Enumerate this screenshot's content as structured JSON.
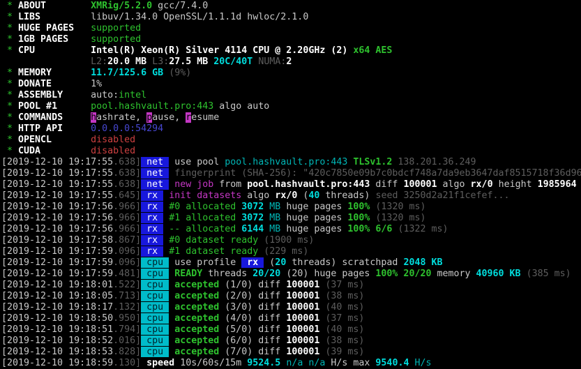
{
  "app": "xmrig-terminal",
  "palette": {
    "background": "#000000",
    "text": "#c9c9c9",
    "text_bright": "#ffffff",
    "green": "#2ec22e",
    "cyan": "#00b5b5",
    "cyan_bright": "#00dede",
    "gray_dim": "#5e5e5e",
    "magenta": "#c437c4",
    "red": "#cd4040",
    "blue": "#4747d1",
    "tag_net_bg": "#1818dc",
    "tag_cpu_bg": "#00bcca"
  },
  "terminal": {
    "info_lines": [
      {
        "star": true,
        "label": "ABOUT",
        "segments": [
          [
            "G",
            "XMRig/5.2.0"
          ],
          [
            "w",
            " gcc/7.4.0"
          ]
        ]
      },
      {
        "star": true,
        "label": "LIBS",
        "segments": [
          [
            "w",
            "libuv/1.34.0 OpenSSL/1.1.1d hwloc/2.1.0"
          ]
        ]
      },
      {
        "star": true,
        "label": "HUGE PAGES",
        "segments": [
          [
            "g",
            "supported"
          ]
        ]
      },
      {
        "star": true,
        "label": "1GB PAGES",
        "segments": [
          [
            "g",
            "supported"
          ]
        ]
      },
      {
        "star": true,
        "label": "CPU",
        "segments": [
          [
            "W",
            "Intel(R) Xeon(R) Silver 4114 CPU @ 2.20GHz (2) "
          ],
          [
            "G",
            "x64 AES"
          ]
        ]
      },
      {
        "star": false,
        "label": "",
        "segments": [
          [
            "d",
            "L2:"
          ],
          [
            "W",
            "20.0 MB "
          ],
          [
            "d",
            "L3:"
          ],
          [
            "W",
            "27.5 MB "
          ],
          [
            "C",
            "20C/40T "
          ],
          [
            "d",
            "NUMA:"
          ],
          [
            "W",
            "2"
          ]
        ]
      },
      {
        "star": true,
        "label": "MEMORY",
        "segments": [
          [
            "C",
            "11.7/125.6 GB "
          ],
          [
            "d",
            "(9%)"
          ]
        ]
      },
      {
        "star": true,
        "label": "DONATE",
        "segments": [
          [
            "w",
            "1%"
          ]
        ]
      },
      {
        "star": true,
        "label": "ASSEMBLY",
        "segments": [
          [
            "w",
            "auto:"
          ],
          [
            "g",
            "intel"
          ]
        ]
      },
      {
        "star": true,
        "label": "POOL #1",
        "segments": [
          [
            "g",
            "pool.hashvault.pro:443"
          ],
          [
            "w",
            " algo auto"
          ]
        ]
      },
      {
        "star": true,
        "label": "COMMANDS",
        "segments": [
          [
            "mk",
            "h"
          ],
          [
            "w",
            "ashrate, "
          ],
          [
            "mk",
            "p"
          ],
          [
            "w",
            "ause, "
          ],
          [
            "mk",
            "r"
          ],
          [
            "w",
            "esume"
          ]
        ]
      },
      {
        "star": true,
        "label": "HTTP API",
        "segments": [
          [
            "b",
            "0.0.0.0:54294"
          ]
        ]
      },
      {
        "star": true,
        "label": "OPENCL",
        "segments": [
          [
            "r",
            "disabled"
          ]
        ]
      },
      {
        "star": true,
        "label": "CUDA",
        "segments": [
          [
            "r",
            "disabled"
          ]
        ]
      }
    ],
    "log_lines": [
      {
        "date": "2019-12-10",
        "time": "19:17:55",
        "ms": "638",
        "tag": "net",
        "segments": [
          [
            "w",
            "use pool "
          ],
          [
            "c",
            "pool.hashvault.pro:443 "
          ],
          [
            "G",
            "TLSv1.2 "
          ],
          [
            "d",
            "138.201.36.249"
          ]
        ]
      },
      {
        "date": "2019-12-10",
        "time": "19:17:55",
        "ms": "638",
        "tag": "net",
        "segments": [
          [
            "d",
            "fingerprint (SHA-256): \"420c7850e09b7c0bdcf748a7da9eb3647daf8515718f36d96"
          ]
        ]
      },
      {
        "date": "2019-12-10",
        "time": "19:17:55",
        "ms": "638",
        "tag": "net",
        "segments": [
          [
            "m",
            "new job"
          ],
          [
            "w",
            " from "
          ],
          [
            "W",
            "pool.hashvault.pro:443"
          ],
          [
            "w",
            " diff "
          ],
          [
            "W",
            "100001"
          ],
          [
            "w",
            " algo "
          ],
          [
            "W",
            "rx/0"
          ],
          [
            "w",
            " height "
          ],
          [
            "W",
            "1985964"
          ]
        ]
      },
      {
        "date": "2019-12-10",
        "time": "19:17:55",
        "ms": "645",
        "tag": "rx",
        "segments": [
          [
            "m",
            "init datasets"
          ],
          [
            "w",
            " algo "
          ],
          [
            "W",
            "rx/0"
          ],
          [
            "w",
            " ("
          ],
          [
            "C",
            "40"
          ],
          [
            "w",
            " threads) "
          ],
          [
            "d",
            "seed 3250d2a21f1cefef..."
          ]
        ]
      },
      {
        "date": "2019-12-10",
        "time": "19:17:56",
        "ms": "966",
        "tag": "rx",
        "segments": [
          [
            "g",
            "#0 allocated "
          ],
          [
            "C",
            "3072 "
          ],
          [
            "c",
            "MB "
          ],
          [
            "w",
            "huge pages "
          ],
          [
            "G",
            "100% "
          ],
          [
            "d",
            "(1320 ms)"
          ]
        ]
      },
      {
        "date": "2019-12-10",
        "time": "19:17:56",
        "ms": "966",
        "tag": "rx",
        "segments": [
          [
            "g",
            "#1 allocated "
          ],
          [
            "C",
            "3072 "
          ],
          [
            "c",
            "MB "
          ],
          [
            "w",
            "huge pages "
          ],
          [
            "G",
            "100% "
          ],
          [
            "d",
            "(1320 ms)"
          ]
        ]
      },
      {
        "date": "2019-12-10",
        "time": "19:17:56",
        "ms": "966",
        "tag": "rx",
        "segments": [
          [
            "g",
            "-- allocated "
          ],
          [
            "C",
            "6144 "
          ],
          [
            "c",
            "MB "
          ],
          [
            "w",
            "huge pages "
          ],
          [
            "G",
            "100% 6/6 "
          ],
          [
            "d",
            "(1322 ms)"
          ]
        ]
      },
      {
        "date": "2019-12-10",
        "time": "19:17:58",
        "ms": "867",
        "tag": "rx",
        "segments": [
          [
            "g",
            "#0 dataset ready "
          ],
          [
            "d",
            "(1900 ms)"
          ]
        ]
      },
      {
        "date": "2019-12-10",
        "time": "19:17:59",
        "ms": "096",
        "tag": "rx",
        "segments": [
          [
            "g",
            "#1 dataset ready "
          ],
          [
            "d",
            "(229 ms)"
          ]
        ]
      },
      {
        "date": "2019-12-10",
        "time": "19:17:59",
        "ms": "096",
        "tag": "cpu",
        "segments": [
          [
            "w",
            "use profile "
          ],
          [
            "chip",
            " rx "
          ],
          [
            "w",
            " ("
          ],
          [
            "C",
            "20"
          ],
          [
            "w",
            " threads) scratchpad "
          ],
          [
            "C",
            "2048 KB"
          ]
        ]
      },
      {
        "date": "2019-12-10",
        "time": "19:17:59",
        "ms": "481",
        "tag": "cpu",
        "segments": [
          [
            "G",
            "READY"
          ],
          [
            "w",
            " threads "
          ],
          [
            "C",
            "20/20"
          ],
          [
            "w",
            " (20) huge pages "
          ],
          [
            "G",
            "100% 20/20"
          ],
          [
            "w",
            " memory "
          ],
          [
            "C",
            "40960 KB "
          ],
          [
            "d",
            "(385 ms)"
          ]
        ]
      },
      {
        "date": "2019-12-10",
        "time": "19:18:01",
        "ms": "522",
        "tag": "cpu",
        "segments": [
          [
            "G",
            "accepted"
          ],
          [
            "w",
            " (1/0) diff "
          ],
          [
            "W",
            "100001"
          ],
          [
            "w",
            " "
          ],
          [
            "d",
            "(37 ms)"
          ]
        ]
      },
      {
        "date": "2019-12-10",
        "time": "19:18:05",
        "ms": "713",
        "tag": "cpu",
        "segments": [
          [
            "G",
            "accepted"
          ],
          [
            "w",
            " (2/0) diff "
          ],
          [
            "W",
            "100001"
          ],
          [
            "w",
            " "
          ],
          [
            "d",
            "(38 ms)"
          ]
        ]
      },
      {
        "date": "2019-12-10",
        "time": "19:18:17",
        "ms": "132",
        "tag": "cpu",
        "segments": [
          [
            "G",
            "accepted"
          ],
          [
            "w",
            " (3/0) diff "
          ],
          [
            "W",
            "100001"
          ],
          [
            "w",
            " "
          ],
          [
            "d",
            "(40 ms)"
          ]
        ]
      },
      {
        "date": "2019-12-10",
        "time": "19:18:50",
        "ms": "950",
        "tag": "cpu",
        "segments": [
          [
            "G",
            "accepted"
          ],
          [
            "w",
            " (4/0) diff "
          ],
          [
            "W",
            "100001"
          ],
          [
            "w",
            " "
          ],
          [
            "d",
            "(37 ms)"
          ]
        ]
      },
      {
        "date": "2019-12-10",
        "time": "19:18:51",
        "ms": "794",
        "tag": "cpu",
        "segments": [
          [
            "G",
            "accepted"
          ],
          [
            "w",
            " (5/0) diff "
          ],
          [
            "W",
            "100001"
          ],
          [
            "w",
            " "
          ],
          [
            "d",
            "(40 ms)"
          ]
        ]
      },
      {
        "date": "2019-12-10",
        "time": "19:18:52",
        "ms": "016",
        "tag": "cpu",
        "segments": [
          [
            "G",
            "accepted"
          ],
          [
            "w",
            " (6/0) diff "
          ],
          [
            "W",
            "100001"
          ],
          [
            "w",
            " "
          ],
          [
            "d",
            "(38 ms)"
          ]
        ]
      },
      {
        "date": "2019-12-10",
        "time": "19:18:53",
        "ms": "828",
        "tag": "cpu",
        "segments": [
          [
            "G",
            "accepted"
          ],
          [
            "w",
            " (7/0) diff "
          ],
          [
            "W",
            "100001"
          ],
          [
            "w",
            " "
          ],
          [
            "d",
            "(39 ms)"
          ]
        ]
      },
      {
        "date": "2019-12-10",
        "time": "19:18:59",
        "ms": "130",
        "tag": null,
        "segments": [
          [
            "W",
            "speed "
          ],
          [
            "w",
            "10s/60s/15m "
          ],
          [
            "C",
            "9524.5 "
          ],
          [
            "c",
            "n/a n/a "
          ],
          [
            "w",
            "H/s max "
          ],
          [
            "C",
            "9540.4 "
          ],
          [
            "c",
            "H/s"
          ]
        ]
      }
    ]
  }
}
